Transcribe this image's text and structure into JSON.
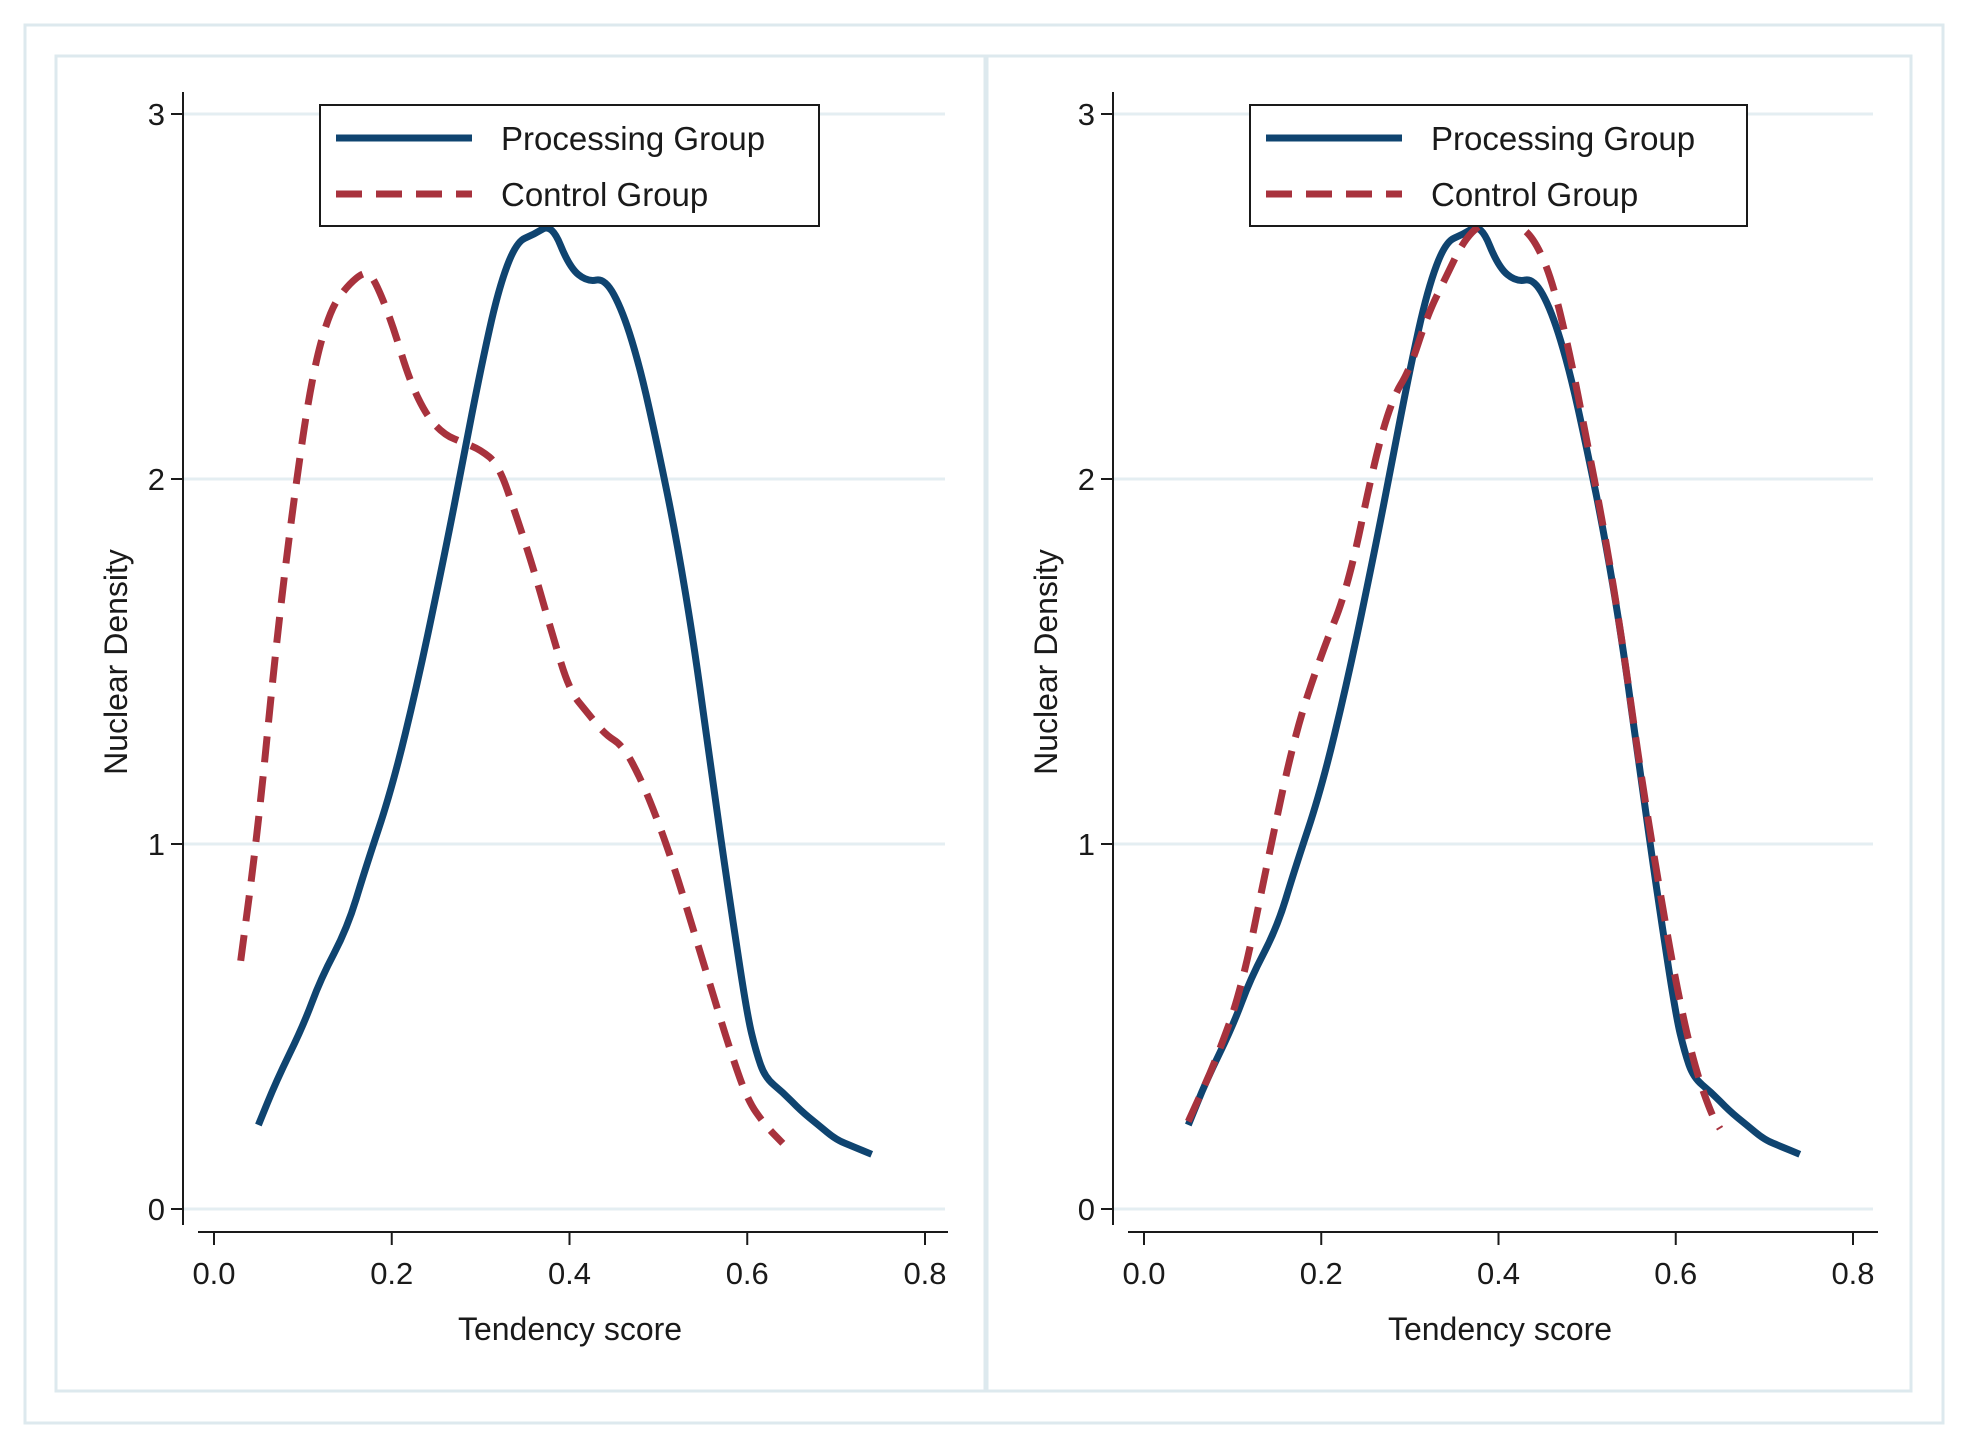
{
  "colors": {
    "processing": "#0f4470",
    "control": "#a8323d",
    "gridline": "#e4eef2",
    "panel_border": "#dde9ee",
    "axis": "#1a1a1a"
  },
  "chart_data": [
    {
      "type": "line",
      "panel": "left (before matching)",
      "xlabel": "Tendency score",
      "ylabel": "Nuclear Density",
      "xlim": [
        0.0,
        0.8
      ],
      "ylim": [
        0,
        3
      ],
      "xticks": [
        0.0,
        0.2,
        0.4,
        0.6,
        0.8
      ],
      "xtick_labels": [
        "0.0",
        "0.2",
        "0.4",
        "0.6",
        "0.8"
      ],
      "yticks": [
        0,
        1,
        2,
        3
      ],
      "ytick_labels": [
        "0",
        "1",
        "2",
        "3"
      ],
      "grid": true,
      "legend_position": "top-center",
      "series": [
        {
          "name": "Processing Group",
          "style": "solid",
          "x": [
            0.05,
            0.07,
            0.1,
            0.12,
            0.15,
            0.17,
            0.2,
            0.23,
            0.26,
            0.28,
            0.3,
            0.32,
            0.34,
            0.36,
            0.38,
            0.4,
            0.42,
            0.44,
            0.46,
            0.48,
            0.5,
            0.52,
            0.54,
            0.56,
            0.58,
            0.6,
            0.61,
            0.62,
            0.64,
            0.66,
            0.68,
            0.7,
            0.72,
            0.74
          ],
          "y": [
            0.23,
            0.35,
            0.5,
            0.63,
            0.77,
            0.93,
            1.15,
            1.45,
            1.8,
            2.05,
            2.3,
            2.52,
            2.65,
            2.67,
            2.7,
            2.58,
            2.54,
            2.55,
            2.46,
            2.3,
            2.08,
            1.84,
            1.55,
            1.19,
            0.85,
            0.53,
            0.43,
            0.36,
            0.32,
            0.27,
            0.23,
            0.19,
            0.17,
            0.15
          ]
        },
        {
          "name": "Control Group",
          "style": "dashed",
          "x": [
            0.03,
            0.05,
            0.07,
            0.09,
            0.11,
            0.13,
            0.15,
            0.17,
            0.18,
            0.2,
            0.22,
            0.24,
            0.26,
            0.28,
            0.3,
            0.32,
            0.34,
            0.36,
            0.38,
            0.4,
            0.42,
            0.44,
            0.46,
            0.48,
            0.5,
            0.52,
            0.54,
            0.56,
            0.58,
            0.6,
            0.62,
            0.64
          ],
          "y": [
            0.68,
            1.05,
            1.55,
            1.95,
            2.28,
            2.46,
            2.53,
            2.57,
            2.55,
            2.43,
            2.27,
            2.17,
            2.12,
            2.1,
            2.08,
            2.04,
            1.9,
            1.75,
            1.58,
            1.42,
            1.36,
            1.3,
            1.27,
            1.18,
            1.06,
            0.92,
            0.76,
            0.6,
            0.44,
            0.3,
            0.23,
            0.18
          ]
        }
      ],
      "legend": [
        "Processing Group",
        "Control Group"
      ]
    },
    {
      "type": "line",
      "panel": "right (after matching)",
      "xlabel": "Tendency score",
      "ylabel": "Nuclear Density",
      "xlim": [
        0.0,
        0.8
      ],
      "ylim": [
        0,
        3
      ],
      "xticks": [
        0.0,
        0.2,
        0.4,
        0.6,
        0.8
      ],
      "xtick_labels": [
        "0.0",
        "0.2",
        "0.4",
        "0.6",
        "0.8"
      ],
      "yticks": [
        0,
        1,
        2,
        3
      ],
      "ytick_labels": [
        "0",
        "1",
        "2",
        "3"
      ],
      "grid": true,
      "legend_position": "top-center",
      "series": [
        {
          "name": "Processing Group",
          "style": "solid",
          "x": [
            0.05,
            0.07,
            0.1,
            0.12,
            0.15,
            0.17,
            0.2,
            0.23,
            0.26,
            0.28,
            0.3,
            0.32,
            0.34,
            0.36,
            0.38,
            0.4,
            0.42,
            0.44,
            0.46,
            0.48,
            0.5,
            0.52,
            0.54,
            0.56,
            0.58,
            0.6,
            0.61,
            0.62,
            0.64,
            0.66,
            0.68,
            0.7,
            0.72,
            0.74
          ],
          "y": [
            0.23,
            0.35,
            0.5,
            0.63,
            0.77,
            0.93,
            1.15,
            1.45,
            1.8,
            2.05,
            2.3,
            2.52,
            2.65,
            2.67,
            2.7,
            2.58,
            2.54,
            2.55,
            2.46,
            2.3,
            2.08,
            1.84,
            1.55,
            1.19,
            0.85,
            0.53,
            0.43,
            0.36,
            0.32,
            0.27,
            0.23,
            0.19,
            0.17,
            0.15
          ]
        },
        {
          "name": "Control Group",
          "style": "dashed",
          "x": [
            0.05,
            0.08,
            0.11,
            0.14,
            0.17,
            0.2,
            0.23,
            0.26,
            0.28,
            0.3,
            0.32,
            0.34,
            0.36,
            0.38,
            0.4,
            0.42,
            0.44,
            0.46,
            0.48,
            0.5,
            0.52,
            0.54,
            0.56,
            0.58,
            0.6,
            0.62,
            0.64,
            0.65
          ],
          "y": [
            0.24,
            0.4,
            0.6,
            0.96,
            1.3,
            1.52,
            1.7,
            2.05,
            2.22,
            2.3,
            2.45,
            2.55,
            2.65,
            2.7,
            2.72,
            2.7,
            2.66,
            2.55,
            2.35,
            2.1,
            1.85,
            1.55,
            1.2,
            0.9,
            0.62,
            0.4,
            0.26,
            0.22
          ]
        }
      ],
      "legend": [
        "Processing Group",
        "Control Group"
      ]
    }
  ]
}
